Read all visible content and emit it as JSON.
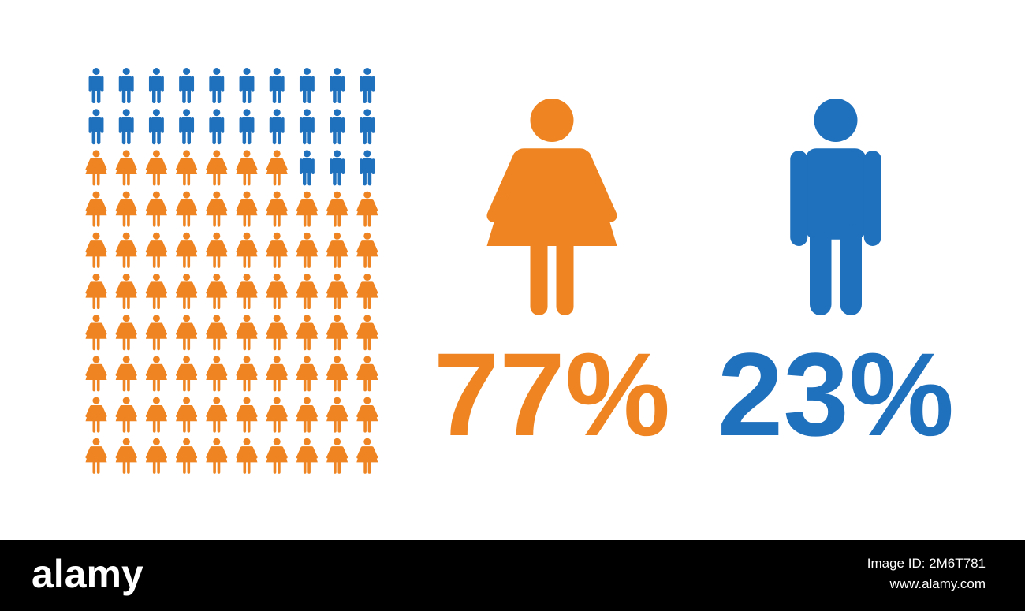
{
  "chart_data": {
    "type": "pictogram",
    "values": [
      77,
      23
    ],
    "value_labels": [
      "77%",
      "23%"
    ],
    "colors": [
      "#ee8522",
      "#1f70bd"
    ],
    "icons": [
      "woman",
      "man"
    ]
  },
  "watermark": {
    "brand": "alamy",
    "image_id": "Image ID: 2M6T781",
    "url": "www.alamy.com"
  }
}
